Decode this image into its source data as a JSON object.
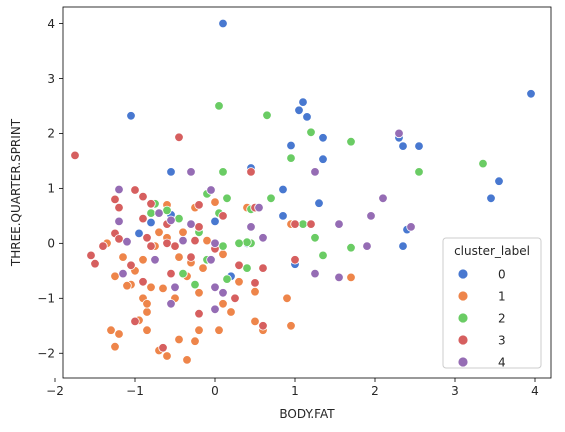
{
  "chart_data": {
    "type": "scatter",
    "xlabel": "BODY.FAT",
    "ylabel": "THREE.QUARTER.SPRINT",
    "xlim": [
      -1.9,
      4.2
    ],
    "ylim": [
      -2.45,
      4.3
    ],
    "xticks": [
      -2,
      -1,
      0,
      1,
      2,
      3,
      4
    ],
    "yticks": [
      -2,
      -1,
      0,
      1,
      2,
      3,
      4
    ],
    "grid": false,
    "legend": {
      "title": "cluster_label",
      "placement": "lower-right"
    },
    "series": [
      {
        "name": "0",
        "color": "#4878d0",
        "points": [
          [
            0.1,
            4.0
          ],
          [
            -1.05,
            2.32
          ],
          [
            3.95,
            2.72
          ],
          [
            1.1,
            2.57
          ],
          [
            1.05,
            2.42
          ],
          [
            1.15,
            2.3
          ],
          [
            0.95,
            1.78
          ],
          [
            1.35,
            1.92
          ],
          [
            1.35,
            1.53
          ],
          [
            2.3,
            1.92
          ],
          [
            2.35,
            1.77
          ],
          [
            2.55,
            1.77
          ],
          [
            2.55,
            1.3
          ],
          [
            3.55,
            1.13
          ],
          [
            3.45,
            0.82
          ],
          [
            0.45,
            1.37
          ],
          [
            -0.55,
            1.3
          ],
          [
            0.85,
            0.98
          ],
          [
            1.3,
            0.73
          ],
          [
            0.85,
            0.5
          ],
          [
            2.4,
            0.25
          ],
          [
            2.35,
            -0.05
          ],
          [
            1.0,
            -0.38
          ],
          [
            -0.95,
            0.18
          ],
          [
            -0.55,
            0.52
          ],
          [
            -0.8,
            0.38
          ],
          [
            0.0,
            0.4
          ],
          [
            0.4,
            0.0
          ],
          [
            0.2,
            -0.6
          ]
        ]
      },
      {
        "name": "1",
        "color": "#ee854a",
        "points": [
          [
            -1.3,
            -1.58
          ],
          [
            -1.25,
            -1.88
          ],
          [
            -1.2,
            -1.65
          ],
          [
            -1.05,
            -0.75
          ],
          [
            -1.1,
            -0.77
          ],
          [
            -0.95,
            -1.4
          ],
          [
            -0.9,
            -1.0
          ],
          [
            -0.85,
            -1.25
          ],
          [
            -0.85,
            -1.58
          ],
          [
            -0.7,
            -1.95
          ],
          [
            -0.6,
            -2.05
          ],
          [
            -0.45,
            -1.75
          ],
          [
            -0.35,
            -2.12
          ],
          [
            -0.25,
            -1.78
          ],
          [
            -0.2,
            -1.58
          ],
          [
            0.05,
            -1.58
          ],
          [
            0.1,
            -1.1
          ],
          [
            0.2,
            -1.25
          ],
          [
            0.5,
            -1.42
          ],
          [
            0.6,
            -1.58
          ],
          [
            0.95,
            -1.5
          ],
          [
            0.9,
            -1.0
          ],
          [
            0.5,
            -0.88
          ],
          [
            0.3,
            -0.7
          ],
          [
            -0.2,
            -0.9
          ],
          [
            -0.5,
            -1.0
          ],
          [
            -0.65,
            -0.82
          ],
          [
            -0.8,
            -0.8
          ],
          [
            -0.35,
            -0.6
          ],
          [
            -0.15,
            -0.45
          ],
          [
            -0.45,
            -0.25
          ],
          [
            -0.3,
            -0.35
          ],
          [
            -0.6,
            0.1
          ],
          [
            -0.7,
            0.2
          ],
          [
            -0.75,
            -0.05
          ],
          [
            -0.9,
            -0.3
          ],
          [
            -1.0,
            -0.5
          ],
          [
            -1.25,
            -0.6
          ],
          [
            -1.15,
            -0.25
          ],
          [
            -0.6,
            0.7
          ],
          [
            -0.25,
            0.65
          ],
          [
            0.0,
            0.75
          ],
          [
            0.4,
            0.65
          ],
          [
            0.95,
            0.35
          ],
          [
            1.7,
            -0.62
          ],
          [
            -1.35,
            0.0
          ],
          [
            -0.1,
            0.05
          ],
          [
            0.1,
            -0.2
          ],
          [
            -0.4,
            0.2
          ],
          [
            -0.85,
            -1.1
          ]
        ]
      },
      {
        "name": "2",
        "color": "#6acc64",
        "points": [
          [
            0.05,
            2.5
          ],
          [
            0.65,
            2.33
          ],
          [
            1.2,
            2.02
          ],
          [
            1.7,
            1.85
          ],
          [
            0.95,
            1.55
          ],
          [
            0.1,
            1.3
          ],
          [
            3.35,
            1.45
          ],
          [
            2.55,
            1.3
          ],
          [
            0.15,
            0.82
          ],
          [
            -0.1,
            0.9
          ],
          [
            0.05,
            0.55
          ],
          [
            0.45,
            0.62
          ],
          [
            0.7,
            0.82
          ],
          [
            -0.75,
            0.72
          ],
          [
            -0.6,
            0.6
          ],
          [
            -0.8,
            0.55
          ],
          [
            -0.45,
            0.45
          ],
          [
            -0.2,
            0.2
          ],
          [
            0.45,
            0.0
          ],
          [
            0.4,
            0.02
          ],
          [
            1.1,
            0.35
          ],
          [
            1.25,
            0.1
          ],
          [
            1.7,
            -0.08
          ],
          [
            1.35,
            -0.22
          ],
          [
            0.1,
            -0.05
          ],
          [
            -0.1,
            -0.3
          ],
          [
            0.4,
            -0.45
          ],
          [
            0.15,
            -0.65
          ],
          [
            -0.25,
            -0.75
          ],
          [
            -0.4,
            -0.55
          ],
          [
            0.3,
            0.0
          ]
        ]
      },
      {
        "name": "3",
        "color": "#d65f5f",
        "points": [
          [
            -1.75,
            1.6
          ],
          [
            -0.45,
            1.93
          ],
          [
            0.45,
            1.3
          ],
          [
            -1.0,
            0.97
          ],
          [
            -1.25,
            0.8
          ],
          [
            -0.9,
            0.85
          ],
          [
            -0.8,
            0.72
          ],
          [
            -1.2,
            0.65
          ],
          [
            -0.9,
            0.45
          ],
          [
            -0.6,
            0.35
          ],
          [
            -0.2,
            0.7
          ],
          [
            0.1,
            0.5
          ],
          [
            0.5,
            0.65
          ],
          [
            1.0,
            0.35
          ],
          [
            1.2,
            0.35
          ],
          [
            -1.5,
            -0.37
          ],
          [
            -1.55,
            -0.22
          ],
          [
            -1.4,
            -0.05
          ],
          [
            -1.25,
            0.18
          ],
          [
            -1.2,
            0.08
          ],
          [
            -1.05,
            -0.4
          ],
          [
            -0.8,
            -0.05
          ],
          [
            -0.5,
            -0.05
          ],
          [
            -0.55,
            -0.55
          ],
          [
            -0.3,
            -0.25
          ],
          [
            -0.25,
            0.05
          ],
          [
            0.0,
            -0.1
          ],
          [
            0.3,
            -0.4
          ],
          [
            0.6,
            -0.45
          ],
          [
            0.5,
            -0.72
          ],
          [
            -1.0,
            -1.42
          ],
          [
            -0.65,
            -1.9
          ],
          [
            -0.2,
            -1.28
          ],
          [
            0.25,
            -1.0
          ],
          [
            0.6,
            -1.5
          ],
          [
            1.0,
            -0.3
          ],
          [
            -0.85,
            0.1
          ],
          [
            -0.6,
            0.0
          ],
          [
            -0.2,
            0.3
          ],
          [
            -0.9,
            -0.7
          ]
        ]
      },
      {
        "name": "4",
        "color": "#956cb4",
        "points": [
          [
            2.3,
            2.0
          ],
          [
            -0.3,
            1.3
          ],
          [
            -0.05,
            0.97
          ],
          [
            1.25,
            1.3
          ],
          [
            2.1,
            0.82
          ],
          [
            1.95,
            0.5
          ],
          [
            1.55,
            0.35
          ],
          [
            2.45,
            0.3
          ],
          [
            1.9,
            -0.05
          ],
          [
            1.55,
            -0.62
          ],
          [
            1.25,
            -0.55
          ],
          [
            -1.2,
            0.98
          ],
          [
            -1.2,
            0.4
          ],
          [
            -1.1,
            0.03
          ],
          [
            -0.7,
            0.55
          ],
          [
            -0.55,
            0.42
          ],
          [
            -0.3,
            0.35
          ],
          [
            -0.4,
            0.05
          ],
          [
            0.0,
            0.0
          ],
          [
            -0.05,
            -0.3
          ],
          [
            0.45,
            0.3
          ],
          [
            0.55,
            0.65
          ],
          [
            0.6,
            0.1
          ],
          [
            -1.15,
            -0.55
          ],
          [
            -0.75,
            -0.3
          ],
          [
            -0.5,
            -0.8
          ],
          [
            -0.55,
            -1.1
          ],
          [
            0.0,
            -0.8
          ],
          [
            0.0,
            -1.2
          ],
          [
            0.1,
            -0.9
          ]
        ]
      }
    ]
  }
}
